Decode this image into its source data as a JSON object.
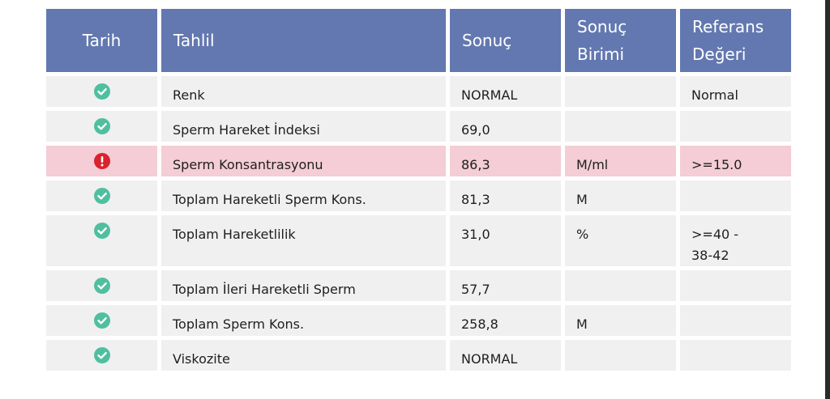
{
  "columns": {
    "date": "Tarih",
    "test": "Tahlil",
    "result": "Sonuç",
    "unit_line1": "Sonuç",
    "unit_line2": "Birimi",
    "reference_line1": "Referans",
    "reference_line2": "Değeri"
  },
  "rows": [
    {
      "status": "normal",
      "status_icon": "check-circle-icon",
      "test": "Renk",
      "result": "NORMAL",
      "unit": "",
      "reference": "Normal"
    },
    {
      "status": "normal",
      "status_icon": "check-circle-icon",
      "test": "Sperm Hareket İndeksi",
      "result": "69,0",
      "unit": "",
      "reference": ""
    },
    {
      "status": "alert",
      "status_icon": "exclamation-circle-icon",
      "test": "Sperm Konsantrasyonu",
      "result": "86,3",
      "unit": "M/ml",
      "reference": ">=15.0"
    },
    {
      "status": "normal",
      "status_icon": "check-circle-icon",
      "test": "Toplam Hareketli Sperm Kons.",
      "result": "81,3",
      "unit": "M",
      "reference": ""
    },
    {
      "status": "normal",
      "status_icon": "check-circle-icon",
      "test": "Toplam Hareketlilik",
      "result": "31,0",
      "unit": "%",
      "reference_line1": ">=40 -",
      "reference_line2": "38-42"
    },
    {
      "status": "normal",
      "status_icon": "check-circle-icon",
      "test": "Toplam İleri Hareketli Sperm",
      "result": "57,7",
      "unit": "",
      "reference": ""
    },
    {
      "status": "normal",
      "status_icon": "check-circle-icon",
      "test": "Toplam Sperm Kons.",
      "result": "258,8",
      "unit": "M",
      "reference": ""
    },
    {
      "status": "normal",
      "status_icon": "check-circle-icon",
      "test": "Viskozite",
      "result": "NORMAL",
      "unit": "",
      "reference": ""
    }
  ],
  "colors": {
    "header_bg": "#6378b0",
    "row_bg": "#f0f0f0",
    "alert_row_bg": "#f4cdd6",
    "check_green": "#4fbf9f",
    "alert_red": "#d9232e"
  }
}
